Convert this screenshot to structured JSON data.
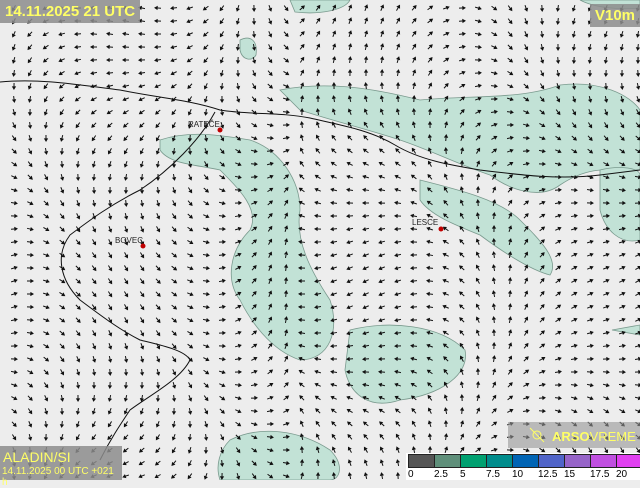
{
  "header": {
    "valid_time": "14.11.2025 21 UTC",
    "parameter": "V10m"
  },
  "footer": {
    "model": "ALADIN/SI",
    "run": "14.11.2025 00 UTC +021 h"
  },
  "logo": {
    "text_bold": "ARSO",
    "text_light": "VREME"
  },
  "cities": [
    {
      "name": "RATEČE"
    },
    {
      "name": "BOVEC"
    },
    {
      "name": "LESCE"
    }
  ],
  "legend": {
    "labels": [
      "0",
      "2.5",
      "5",
      "7.5",
      "10",
      "12.5",
      "15",
      "17.5",
      "20"
    ],
    "colors": [
      "#555555",
      "#5f8f7a",
      "#00a070",
      "#008c8c",
      "#0064b4",
      "#5064c8",
      "#9664c8",
      "#c050e0",
      "#e040f0"
    ]
  },
  "colors": {
    "wind_area": "#bfe0d4",
    "background": "#ededed",
    "label": "#ffff66"
  }
}
